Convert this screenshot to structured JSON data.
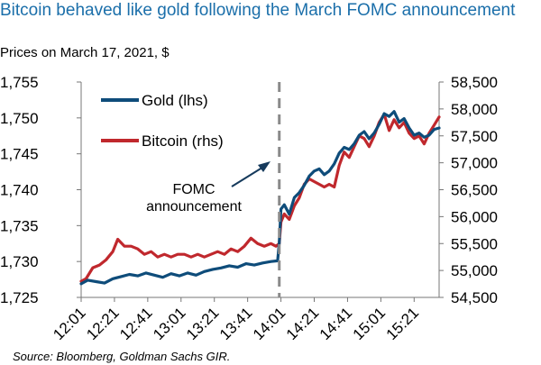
{
  "header": {
    "title": "Bitcoin behaved like gold following the March FOMC announcement",
    "subtitle": "Prices on March 17, 2021, $"
  },
  "footer": {
    "source": "Source: Bloomberg, Goldman Sachs GIR."
  },
  "chart_data": {
    "type": "line",
    "title": "Bitcoin behaved like gold following the March FOMC announcement",
    "subtitle": "Prices on March 17, 2021, $",
    "x_ticks": [
      "12:01",
      "12:21",
      "12:41",
      "13:01",
      "13:21",
      "13:41",
      "14:01",
      "14:21",
      "14:41",
      "15:01",
      "15:21"
    ],
    "x_range": [
      "12:01",
      "15:36"
    ],
    "y_left": {
      "range": [
        1725,
        1755
      ],
      "ticks": [
        "1,725",
        "1,730",
        "1,735",
        "1,740",
        "1,745",
        "1,750",
        "1,755"
      ]
    },
    "y_right": {
      "range": [
        54500,
        58500
      ],
      "ticks": [
        "54,500",
        "55,000",
        "55,500",
        "56,000",
        "56,500",
        "57,000",
        "57,500",
        "58,000",
        "58,500"
      ]
    },
    "legend": {
      "placement": "top-left"
    },
    "annotation": {
      "lines": [
        "FOMC",
        "announcement"
      ],
      "time": "14:00"
    },
    "series": [
      {
        "name": "Gold (lhs)",
        "axis": "left",
        "color": "#0e4c7a",
        "points": [
          [
            "12:01",
            1726.9
          ],
          [
            "12:05",
            1727.4
          ],
          [
            "12:10",
            1727.2
          ],
          [
            "12:15",
            1727.0
          ],
          [
            "12:20",
            1727.6
          ],
          [
            "12:25",
            1727.9
          ],
          [
            "12:30",
            1728.2
          ],
          [
            "12:35",
            1728.0
          ],
          [
            "12:40",
            1728.4
          ],
          [
            "12:45",
            1728.1
          ],
          [
            "12:50",
            1727.8
          ],
          [
            "12:55",
            1728.3
          ],
          [
            "13:00",
            1728.0
          ],
          [
            "13:05",
            1728.4
          ],
          [
            "13:10",
            1728.1
          ],
          [
            "13:15",
            1728.6
          ],
          [
            "13:20",
            1728.9
          ],
          [
            "13:25",
            1729.1
          ],
          [
            "13:30",
            1729.4
          ],
          [
            "13:35",
            1729.2
          ],
          [
            "13:40",
            1729.7
          ],
          [
            "13:45",
            1729.5
          ],
          [
            "13:50",
            1729.8
          ],
          [
            "13:55",
            1730.0
          ],
          [
            "13:59",
            1730.1
          ],
          [
            "14:00",
            1732.6
          ],
          [
            "14:01",
            1737.3
          ],
          [
            "14:03",
            1737.9
          ],
          [
            "14:06",
            1736.6
          ],
          [
            "14:09",
            1738.9
          ],
          [
            "14:12",
            1739.6
          ],
          [
            "14:15",
            1740.6
          ],
          [
            "14:18",
            1741.9
          ],
          [
            "14:21",
            1742.6
          ],
          [
            "14:24",
            1742.9
          ],
          [
            "14:27",
            1742.1
          ],
          [
            "14:30",
            1742.6
          ],
          [
            "14:33",
            1743.6
          ],
          [
            "14:36",
            1745.1
          ],
          [
            "14:39",
            1745.9
          ],
          [
            "14:42",
            1745.6
          ],
          [
            "14:45",
            1746.4
          ],
          [
            "14:48",
            1747.6
          ],
          [
            "14:51",
            1748.1
          ],
          [
            "14:54",
            1747.1
          ],
          [
            "14:57",
            1747.9
          ],
          [
            "15:00",
            1749.1
          ],
          [
            "15:03",
            1750.6
          ],
          [
            "15:06",
            1750.2
          ],
          [
            "15:09",
            1750.9
          ],
          [
            "15:12",
            1749.4
          ],
          [
            "15:15",
            1749.9
          ],
          [
            "15:18",
            1748.6
          ],
          [
            "15:21",
            1747.6
          ],
          [
            "15:24",
            1747.9
          ],
          [
            "15:27",
            1747.3
          ],
          [
            "15:30",
            1747.6
          ],
          [
            "15:33",
            1748.4
          ],
          [
            "15:36",
            1748.6
          ]
        ]
      },
      {
        "name": "Bitcoin (rhs)",
        "axis": "right",
        "color": "#c0282d",
        "points": [
          [
            "12:01",
            54800
          ],
          [
            "12:04",
            54850
          ],
          [
            "12:08",
            55050
          ],
          [
            "12:12",
            55100
          ],
          [
            "12:16",
            55200
          ],
          [
            "12:20",
            55350
          ],
          [
            "12:23",
            55580
          ],
          [
            "12:27",
            55450
          ],
          [
            "12:31",
            55450
          ],
          [
            "12:35",
            55400
          ],
          [
            "12:39",
            55300
          ],
          [
            "12:43",
            55350
          ],
          [
            "12:47",
            55250
          ],
          [
            "12:51",
            55300
          ],
          [
            "12:55",
            55250
          ],
          [
            "12:59",
            55300
          ],
          [
            "13:03",
            55300
          ],
          [
            "13:07",
            55250
          ],
          [
            "13:11",
            55300
          ],
          [
            "13:15",
            55250
          ],
          [
            "13:19",
            55300
          ],
          [
            "13:23",
            55350
          ],
          [
            "13:27",
            55300
          ],
          [
            "13:31",
            55400
          ],
          [
            "13:35",
            55350
          ],
          [
            "13:39",
            55450
          ],
          [
            "13:43",
            55600
          ],
          [
            "13:47",
            55500
          ],
          [
            "13:51",
            55450
          ],
          [
            "13:55",
            55500
          ],
          [
            "13:58",
            55450
          ],
          [
            "14:00",
            55500
          ],
          [
            "14:01",
            55900
          ],
          [
            "14:03",
            56050
          ],
          [
            "14:06",
            55950
          ],
          [
            "14:09",
            56200
          ],
          [
            "14:12",
            56350
          ],
          [
            "14:15",
            56600
          ],
          [
            "14:18",
            56700
          ],
          [
            "14:21",
            56650
          ],
          [
            "14:24",
            56600
          ],
          [
            "14:27",
            56550
          ],
          [
            "14:30",
            56600
          ],
          [
            "14:33",
            56550
          ],
          [
            "14:36",
            56950
          ],
          [
            "14:39",
            57200
          ],
          [
            "14:42",
            57100
          ],
          [
            "14:45",
            57300
          ],
          [
            "14:48",
            57500
          ],
          [
            "14:51",
            57450
          ],
          [
            "14:54",
            57300
          ],
          [
            "14:57",
            57500
          ],
          [
            "15:00",
            57750
          ],
          [
            "15:03",
            57900
          ],
          [
            "15:06",
            57600
          ],
          [
            "15:09",
            57800
          ],
          [
            "15:12",
            57650
          ],
          [
            "15:15",
            57750
          ],
          [
            "15:18",
            57550
          ],
          [
            "15:21",
            57450
          ],
          [
            "15:24",
            57500
          ],
          [
            "15:27",
            57350
          ],
          [
            "15:30",
            57550
          ],
          [
            "15:33",
            57700
          ],
          [
            "15:36",
            57850
          ]
        ]
      }
    ]
  }
}
